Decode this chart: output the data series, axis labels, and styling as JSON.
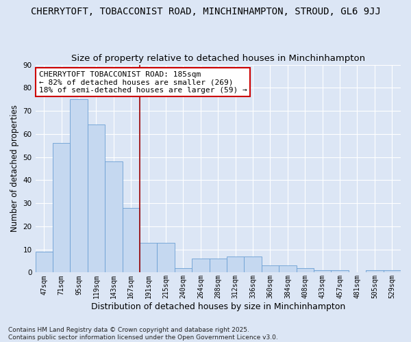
{
  "title": "CHERRYTOFT, TOBACCONIST ROAD, MINCHINHAMPTON, STROUD, GL6 9JJ",
  "subtitle": "Size of property relative to detached houses in Minchinhampton",
  "xlabel": "Distribution of detached houses by size in Minchinhampton",
  "ylabel": "Number of detached properties",
  "categories": [
    "47sqm",
    "71sqm",
    "95sqm",
    "119sqm",
    "143sqm",
    "167sqm",
    "191sqm",
    "215sqm",
    "240sqm",
    "264sqm",
    "288sqm",
    "312sqm",
    "336sqm",
    "360sqm",
    "384sqm",
    "408sqm",
    "433sqm",
    "457sqm",
    "481sqm",
    "505sqm",
    "529sqm"
  ],
  "values": [
    9,
    56,
    75,
    64,
    48,
    28,
    13,
    13,
    2,
    6,
    6,
    7,
    7,
    3,
    3,
    2,
    1,
    1,
    0,
    1,
    1
  ],
  "bar_color": "#c5d8f0",
  "bar_edge_color": "#6b9fd4",
  "background_color": "#dce6f5",
  "grid_color": "#ffffff",
  "vline_x": 6.0,
  "vline_color": "#990000",
  "annotation_text": "CHERRYTOFT TOBACCONIST ROAD: 185sqm\n← 82% of detached houses are smaller (269)\n18% of semi-detached houses are larger (59) →",
  "annotation_box_color": "#ffffff",
  "annotation_box_edge": "#cc0000",
  "ylim": [
    0,
    90
  ],
  "yticks": [
    0,
    10,
    20,
    30,
    40,
    50,
    60,
    70,
    80,
    90
  ],
  "footer": "Contains HM Land Registry data © Crown copyright and database right 2025.\nContains public sector information licensed under the Open Government Licence v3.0.",
  "title_fontsize": 10,
  "subtitle_fontsize": 9.5,
  "xlabel_fontsize": 9,
  "ylabel_fontsize": 8.5,
  "annotation_fontsize": 8
}
